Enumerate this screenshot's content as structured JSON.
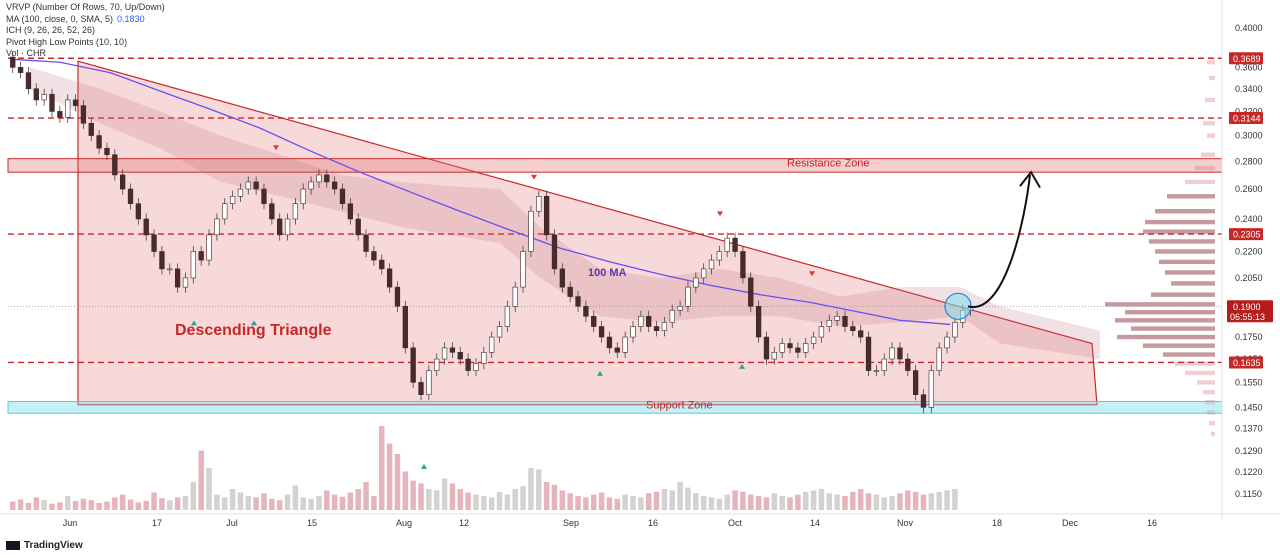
{
  "indicators": {
    "vrvp": "VRVP (Number Of Rows, 70, Up/Down)",
    "ma": "MA (100, close, 0, SMA, 5)",
    "ma_value": "0.1830",
    "ich": "ICH (9, 26, 26, 52, 26)",
    "pivot": "Pivot High Low Points (10, 10)",
    "vol": "Vol · CHR"
  },
  "footer": {
    "brand": "TradingView"
  },
  "annotations": {
    "triangle_label": "Descending Triangle",
    "resistance_label": "Resistance Zone",
    "support_label": "Support Zone",
    "ma_label": "100 MA"
  },
  "chart_data": {
    "type": "candlestick",
    "y_axis": {
      "scale": "log",
      "ticks": [
        "0.4000",
        "0.3600",
        "0.3400",
        "0.3200",
        "0.3000",
        "0.2800",
        "0.2600",
        "0.2400",
        "0.2200",
        "0.2050",
        "0.1900",
        "0.1750",
        "0.1650",
        "0.1550",
        "0.1450",
        "0.1370",
        "0.1290",
        "0.1220",
        "0.1150"
      ]
    },
    "x_axis": {
      "ticks": [
        "Jun",
        "17",
        "Jul",
        "15",
        "Aug",
        "12",
        "Sep",
        "16",
        "Oct",
        "14",
        "Nov",
        "18",
        "Dec",
        "16"
      ]
    },
    "price_badges": [
      {
        "label": "0.3689",
        "value": 0.3689,
        "color": "#c62828"
      },
      {
        "label": "0.3144",
        "value": 0.3144,
        "color": "#c62828"
      },
      {
        "label": "0.2305",
        "value": 0.2305,
        "color": "#c62828"
      },
      {
        "label": "0.1635",
        "value": 0.1635,
        "color": "#c62828"
      }
    ],
    "current_price": {
      "label": "0.1900",
      "countdown": "06:55:13",
      "value": 0.19,
      "color": "#b71c1c"
    },
    "horizontal_levels": [
      0.3689,
      0.3144,
      0.2305,
      0.1635
    ],
    "resistance_zone": [
      0.272,
      0.282
    ],
    "support_zone": [
      0.1435,
      0.1465
    ],
    "triangle": {
      "top_left": 0.366,
      "top_right": 0.172,
      "bottom": 0.146,
      "x_start": 78,
      "x_end": 1097
    },
    "ma100": [
      [
        10,
        0.368
      ],
      [
        60,
        0.365
      ],
      [
        110,
        0.355
      ],
      [
        160,
        0.338
      ],
      [
        210,
        0.322
      ],
      [
        260,
        0.306
      ],
      [
        310,
        0.288
      ],
      [
        360,
        0.272
      ],
      [
        410,
        0.258
      ],
      [
        460,
        0.245
      ],
      [
        510,
        0.233
      ],
      [
        560,
        0.222
      ],
      [
        610,
        0.214
      ],
      [
        660,
        0.207
      ],
      [
        710,
        0.201
      ],
      [
        760,
        0.196
      ],
      [
        810,
        0.192
      ],
      [
        860,
        0.187
      ],
      [
        900,
        0.183
      ],
      [
        950,
        0.181
      ]
    ],
    "close_series": [
      0.36,
      0.355,
      0.34,
      0.33,
      0.335,
      0.32,
      0.315,
      0.33,
      0.325,
      0.31,
      0.3,
      0.29,
      0.285,
      0.27,
      0.26,
      0.25,
      0.24,
      0.23,
      0.22,
      0.21,
      0.21,
      0.2,
      0.205,
      0.22,
      0.215,
      0.23,
      0.24,
      0.25,
      0.255,
      0.26,
      0.265,
      0.26,
      0.25,
      0.24,
      0.23,
      0.24,
      0.25,
      0.26,
      0.265,
      0.27,
      0.265,
      0.26,
      0.25,
      0.24,
      0.23,
      0.22,
      0.215,
      0.21,
      0.2,
      0.19,
      0.17,
      0.155,
      0.15,
      0.16,
      0.165,
      0.17,
      0.168,
      0.165,
      0.16,
      0.163,
      0.168,
      0.175,
      0.18,
      0.19,
      0.2,
      0.22,
      0.245,
      0.255,
      0.23,
      0.21,
      0.2,
      0.195,
      0.19,
      0.185,
      0.18,
      0.175,
      0.17,
      0.168,
      0.175,
      0.18,
      0.185,
      0.18,
      0.178,
      0.182,
      0.188,
      0.19,
      0.2,
      0.205,
      0.21,
      0.215,
      0.22,
      0.228,
      0.22,
      0.205,
      0.19,
      0.175,
      0.165,
      0.168,
      0.172,
      0.17,
      0.168,
      0.172,
      0.175,
      0.18,
      0.183,
      0.185,
      0.18,
      0.178,
      0.175,
      0.16,
      0.16,
      0.165,
      0.17,
      0.165,
      0.16,
      0.15,
      0.145,
      0.16,
      0.17,
      0.175,
      0.182,
      0.188,
      0.19
    ],
    "volume_series": [
      12,
      15,
      10,
      18,
      14,
      9,
      11,
      20,
      13,
      16,
      14,
      10,
      12,
      18,
      22,
      15,
      11,
      13,
      25,
      17,
      14,
      18,
      20,
      40,
      85,
      60,
      22,
      18,
      30,
      25,
      20,
      18,
      24,
      16,
      14,
      22,
      35,
      18,
      16,
      20,
      28,
      22,
      19,
      25,
      30,
      40,
      20,
      120,
      95,
      80,
      55,
      42,
      38,
      30,
      28,
      45,
      38,
      30,
      25,
      22,
      20,
      18,
      26,
      22,
      30,
      34,
      60,
      58,
      40,
      36,
      28,
      24,
      20,
      18,
      22,
      25,
      18,
      16,
      22,
      20,
      18,
      24,
      26,
      30,
      28,
      40,
      32,
      24,
      20,
      18,
      16,
      22,
      28,
      26,
      22,
      20,
      18,
      24,
      20,
      18,
      22,
      26,
      28,
      30,
      24,
      22,
      20,
      26,
      30,
      24,
      22,
      18,
      20,
      24,
      28,
      26,
      22,
      24,
      26,
      28,
      30
    ]
  }
}
